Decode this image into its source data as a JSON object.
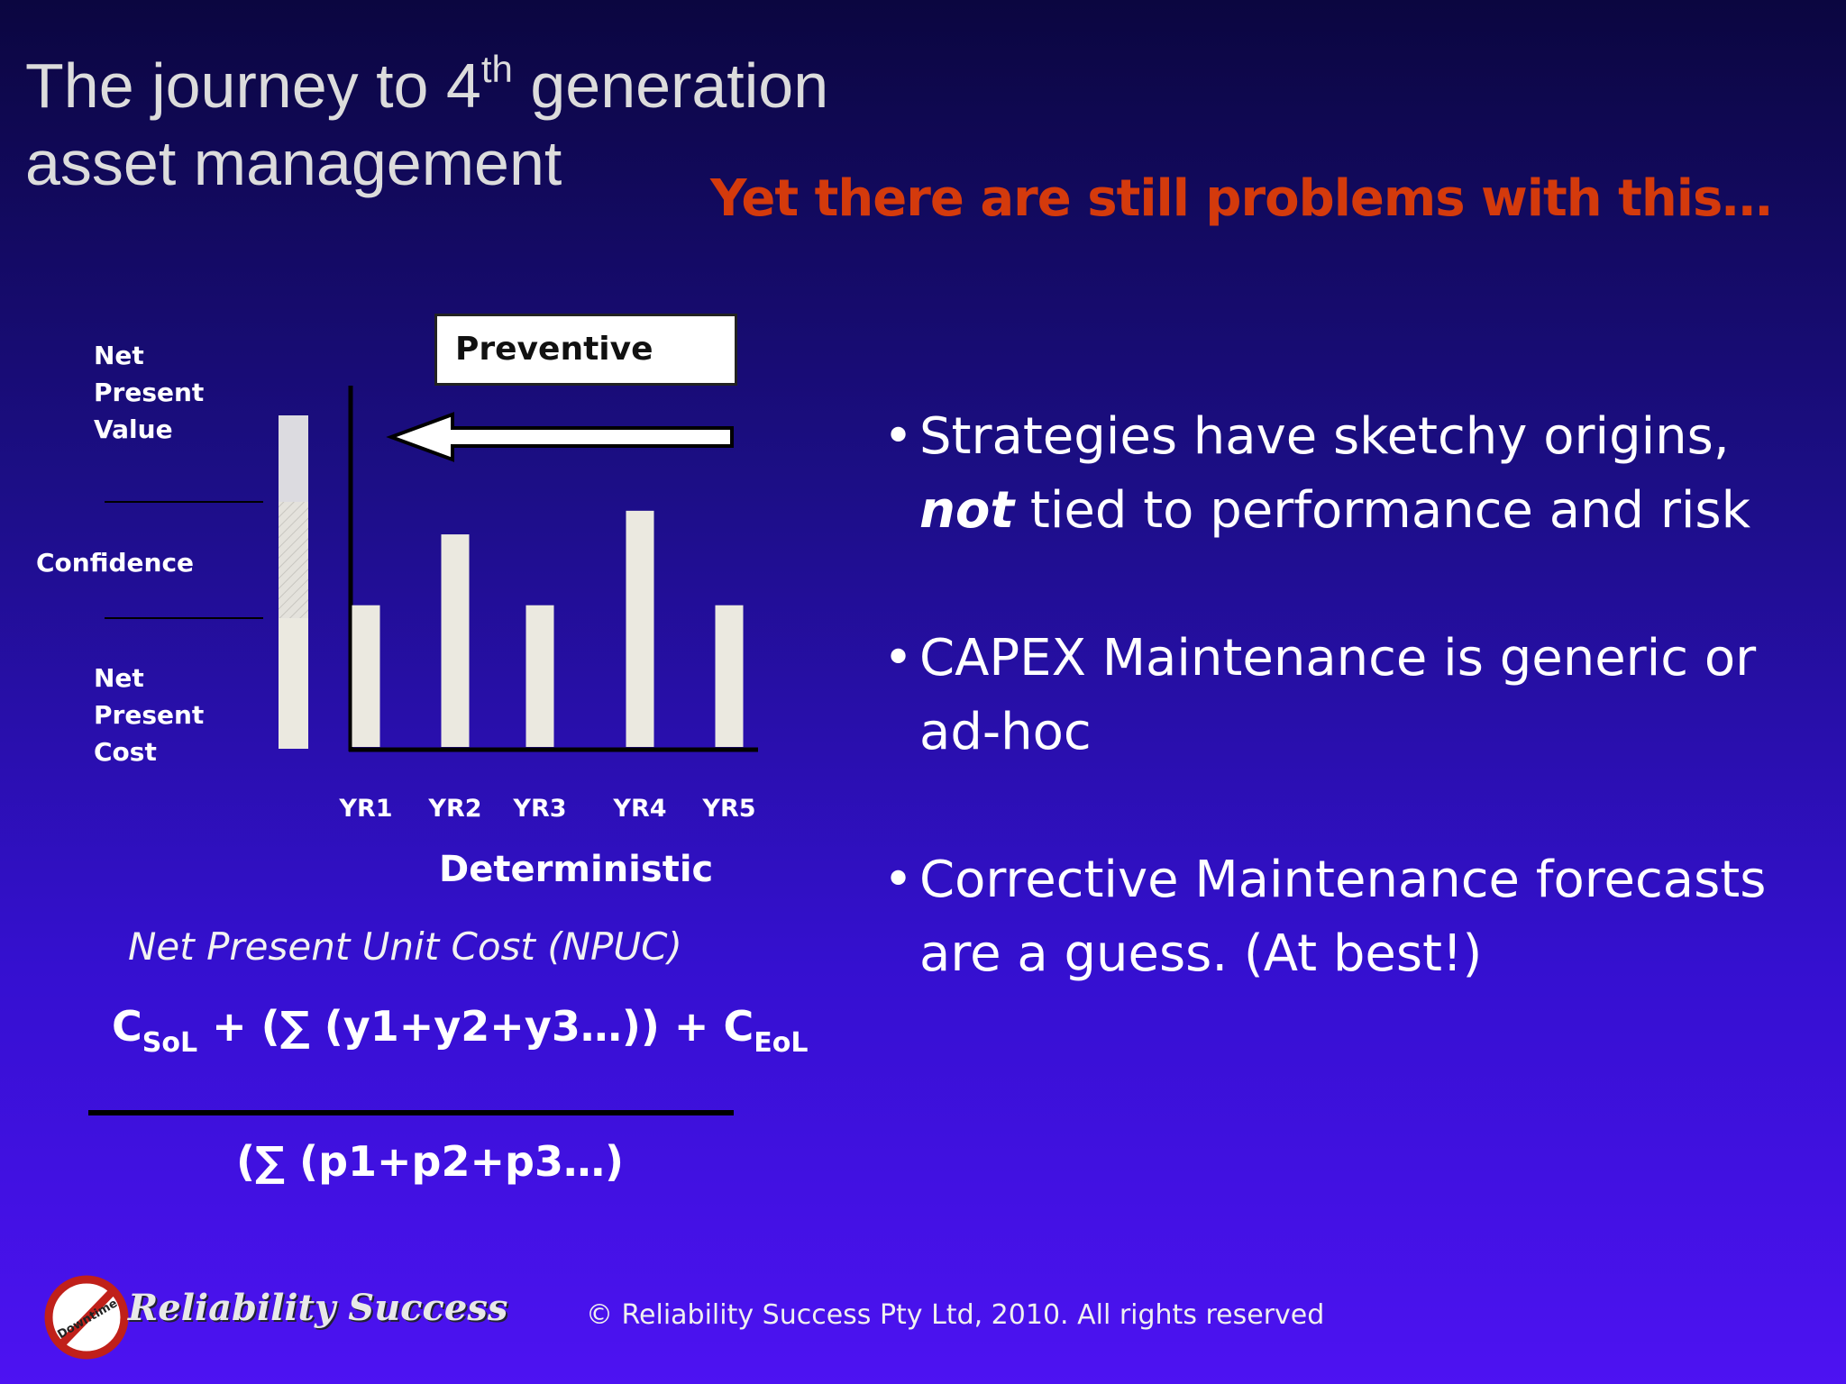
{
  "slide": {
    "title_line1_pre": "The journey to 4",
    "title_sup": "th",
    "title_line1_post": " generation",
    "title_line2": "asset management",
    "subtitle": "Yet there are still problems with this…"
  },
  "chart_labels": {
    "npv": "Net\nPresent\nValue",
    "confidence": "Confidence",
    "npc": "Net\nPresent\nCost",
    "preventive": "Preventive",
    "caption": "Deterministic"
  },
  "chart_data": {
    "type": "bar",
    "categories": [
      "YR1",
      "YR2",
      "YR3",
      "YR4",
      "YR5"
    ],
    "values": [
      3,
      4.5,
      3,
      5,
      3
    ],
    "title": "",
    "xlabel": "Deterministic",
    "ylabel": "",
    "ylim": [
      0,
      7
    ]
  },
  "formula": {
    "label": "Net Present Unit Cost (NPUC)",
    "c1": "C",
    "c1_sub": "SoL",
    "middle": " + (∑ (y1+y2+y3…)) + ",
    "c2": "C",
    "c2_sub": "EoL",
    "denominator": "(∑ (p1+p2+p3…)"
  },
  "bullets": {
    "b1_pre": "Strategies have sketchy origins, ",
    "b1_emph": "not",
    "b1_post": " tied to performance and risk",
    "b2": "CAPEX Maintenance is generic or ad-hoc",
    "b3": "Corrective Maintenance forecasts are a guess. (At best!)"
  },
  "footer": {
    "logo_badge": "Downtime",
    "logo_text": "Reliability Success",
    "copyright": "© Reliability Success Pty  Ltd, 2010. All rights reserved"
  },
  "colors": {
    "subtitle": "#d43a0c",
    "bar": "#ebe9e0",
    "background_top": "#0b0640",
    "background_bottom": "#4d12f2"
  },
  "icons": {
    "arrow": "left-arrow-icon",
    "bullet": "bullet-dot",
    "logo": "no-downtime-logo-icon"
  }
}
